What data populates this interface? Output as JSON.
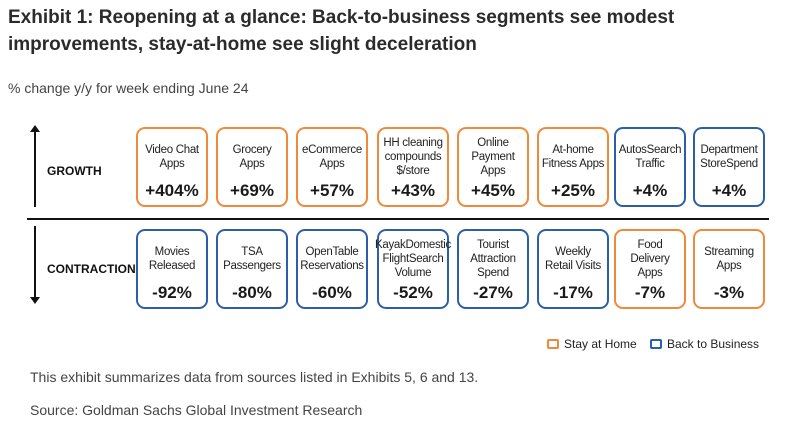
{
  "title": "Exhibit 1: Reopening at a glance: Back-to-business segments see modest improvements, stay-at-home see slight deceleration",
  "subtitle": "% change y/y for week ending June 24",
  "rows": {
    "growth_label": "GROWTH",
    "contraction_label": "CONTRACTION"
  },
  "colors": {
    "stay_at_home": "#ef8a3c",
    "back_to_business": "#2d5fa8"
  },
  "growth": [
    {
      "label": "Video Chat Apps",
      "value": "+404%",
      "category": "stay_at_home"
    },
    {
      "label": "Grocery Apps",
      "value": "+69%",
      "category": "stay_at_home"
    },
    {
      "label": "eCommerce Apps",
      "value": "+57%",
      "category": "stay_at_home"
    },
    {
      "label": "HH cleaning compounds $/store",
      "value": "+43%",
      "category": "stay_at_home"
    },
    {
      "label": "Online Payment Apps",
      "value": "+45%",
      "category": "stay_at_home"
    },
    {
      "label": "At-home Fitness Apps",
      "value": "+25%",
      "category": "stay_at_home"
    },
    {
      "label": "AutosSearch Traffic",
      "value": "+4%",
      "category": "back_to_business"
    },
    {
      "label": "Department StoreSpend",
      "value": "+4%",
      "category": "back_to_business"
    }
  ],
  "contraction": [
    {
      "label": "Movies Released",
      "value": "-92%",
      "category": "back_to_business"
    },
    {
      "label": "TSA Passengers",
      "value": "-80%",
      "category": "back_to_business"
    },
    {
      "label": "OpenTable Reservations",
      "value": "-60%",
      "category": "back_to_business"
    },
    {
      "label": "KayakDomestic FlightSearch Volume",
      "value": "-52%",
      "category": "back_to_business"
    },
    {
      "label": "Tourist Attraction Spend",
      "value": "-27%",
      "category": "back_to_business"
    },
    {
      "label": "Weekly Retail Visits",
      "value": "-17%",
      "category": "back_to_business"
    },
    {
      "label": "Food Delivery Apps",
      "value": "-7%",
      "category": "stay_at_home"
    },
    {
      "label": "Streaming Apps",
      "value": "-3%",
      "category": "stay_at_home"
    }
  ],
  "legend": {
    "stay_at_home": "Stay at Home",
    "back_to_business": "Back to Business"
  },
  "footnote": "This exhibit summarizes data from sources listed in Exhibits 5, 6 and 13.",
  "source": "Source: Goldman Sachs Global Investment Research"
}
